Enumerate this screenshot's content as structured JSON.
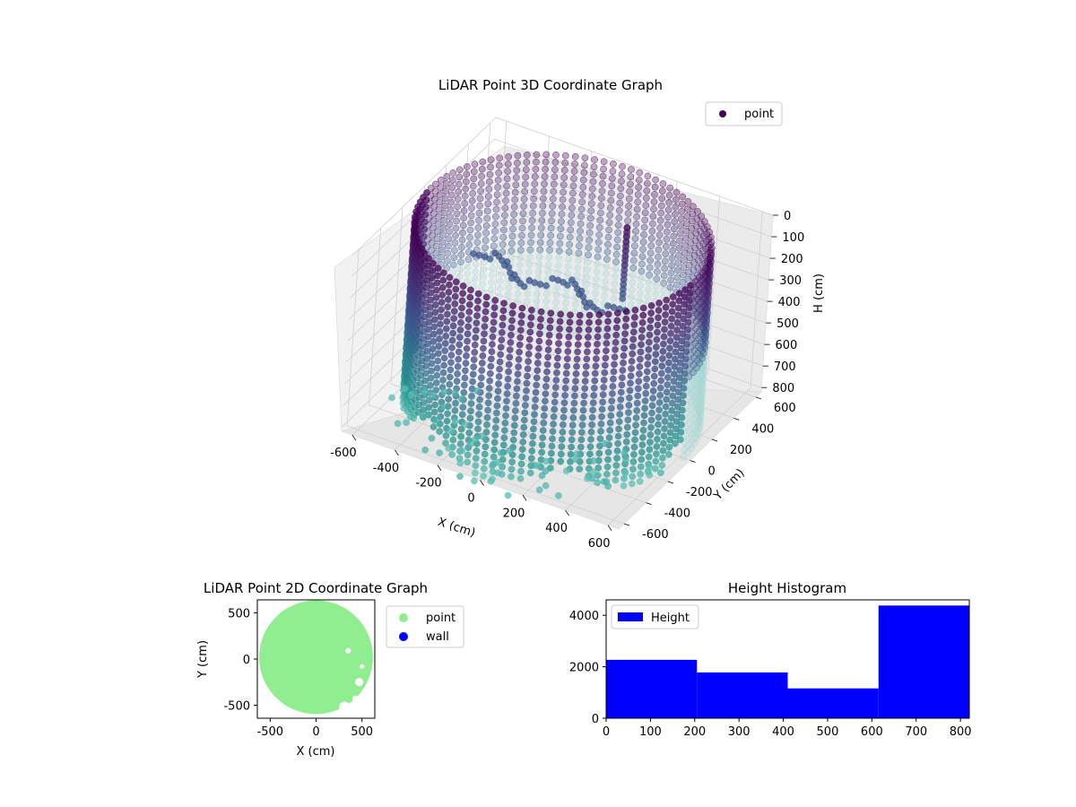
{
  "chart_data": [
    {
      "id": "lidar-3d",
      "type": "scatter",
      "title": "LiDAR Point 3D Coordinate Graph",
      "xlabel": "X (cm)",
      "ylabel": "Y (cm)",
      "zlabel": "H (cm)",
      "xlim": [
        -650,
        650
      ],
      "ylim": [
        -650,
        650
      ],
      "zlim": [
        0,
        820
      ],
      "z_inverted": true,
      "xticks": [
        -600,
        -400,
        -200,
        0,
        200,
        400,
        600
      ],
      "yticks": [
        -600,
        -400,
        -200,
        0,
        200,
        400,
        600
      ],
      "zticks": [
        0,
        100,
        200,
        300,
        400,
        500,
        600,
        700,
        800
      ],
      "legend": {
        "labels": [
          "point"
        ],
        "placement": "top-right"
      },
      "colormap": "viridis",
      "structures": {
        "cylinder_wall": {
          "radius": 620,
          "h_top": 0,
          "h_bottom": 820,
          "column_count": 96
        },
        "inner_structure": {
          "x": 150,
          "y": 300,
          "h_top": 60,
          "h_bottom": 400
        }
      },
      "colors": {
        "top": "#440154",
        "mid": "#3b528b",
        "low": "#21918c",
        "pale": "#a8d8d5"
      }
    },
    {
      "id": "lidar-2d",
      "type": "scatter",
      "title": "LiDAR Point 2D Coordinate Graph",
      "xlabel": "X (cm)",
      "ylabel": "Y (cm)",
      "xlim": [
        -640,
        640
      ],
      "ylim": [
        -640,
        640
      ],
      "xticks": [
        -500,
        0,
        500
      ],
      "yticks": [
        -500,
        0,
        500
      ],
      "series": [
        {
          "name": "point",
          "color": "#90ee90",
          "shape": "disc",
          "radius": 620
        },
        {
          "name": "wall",
          "color": "#0000ff"
        }
      ],
      "legend": {
        "labels": [
          "point",
          "wall"
        ],
        "placement": "outside-right"
      }
    },
    {
      "id": "height-hist",
      "type": "bar",
      "title": "Height Histogram",
      "bins": [
        [
          0,
          205
        ],
        [
          205,
          410
        ],
        [
          410,
          615
        ],
        [
          615,
          820
        ]
      ],
      "values": [
        2270,
        1780,
        1160,
        4380
      ],
      "xlim": [
        0,
        820
      ],
      "ylim": [
        0,
        4600
      ],
      "xticks": [
        0,
        100,
        200,
        300,
        400,
        500,
        600,
        700,
        800
      ],
      "yticks": [
        0,
        2000,
        4000
      ],
      "legend": {
        "labels": [
          "Height"
        ],
        "placement": "top-left"
      },
      "color": "#0000ff"
    }
  ]
}
